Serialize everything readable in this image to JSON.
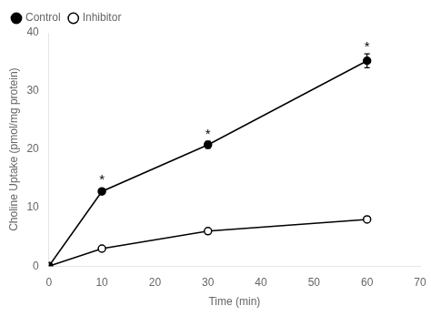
{
  "chart_data": {
    "type": "line",
    "x": [
      0,
      10,
      30,
      60
    ],
    "series": [
      {
        "name": "Control",
        "color": "#000000",
        "marker": "circle",
        "values": [
          0,
          12.8,
          20.8,
          35.2
        ],
        "yerr": [
          0,
          0.4,
          0.6,
          1.2
        ]
      },
      {
        "name": "Inhibitor",
        "color": "#000000",
        "marker": "open_circle",
        "values": [
          0,
          3.0,
          6.0,
          8.0
        ],
        "yerr": [
          0,
          0.3,
          0.3,
          0.3
        ]
      }
    ],
    "xlabel": "Time (min)",
    "ylabel": "Choline Uptake (pmol/mg protein)",
    "xlim": [
      0,
      70
    ],
    "ylim": [
      0,
      40
    ],
    "xticks": [
      0,
      10,
      20,
      30,
      40,
      50,
      60,
      70
    ],
    "yticks": [
      0,
      10,
      20,
      30,
      40
    ],
    "annotations": [
      {
        "x": 10,
        "y": 14.2,
        "text": "*"
      },
      {
        "x": 30,
        "y": 22.0,
        "text": "*"
      },
      {
        "x": 60,
        "y": 37.0,
        "text": "*"
      }
    ],
    "legend": "upper left",
    "grid": false
  }
}
